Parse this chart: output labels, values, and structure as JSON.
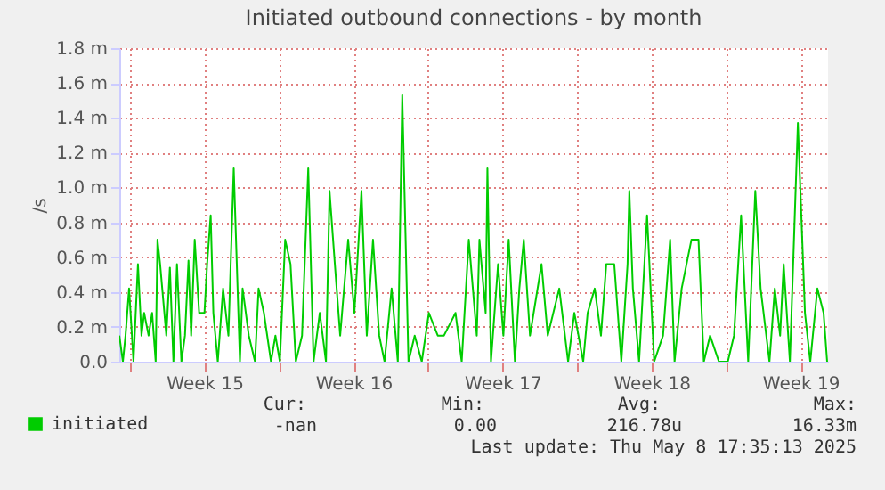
{
  "chart_data": {
    "type": "line",
    "title": "Initiated outbound connections - by month",
    "ylabel": "/s",
    "x": [
      "2025-04-05T12:00",
      "2025-04-05T16:00",
      "2025-04-05T19:00",
      "2025-04-05T23:00",
      "2025-04-06T04:00",
      "2025-04-06T09:00",
      "2025-04-06T13:00",
      "2025-04-06T16:00",
      "2025-04-06T21:00",
      "2025-04-07T01:00",
      "2025-04-07T05:00",
      "2025-04-07T07:00",
      "2025-04-07T10:00",
      "2025-04-07T17:00",
      "2025-04-07T21:00",
      "2025-04-08T01:00",
      "2025-04-08T05:00",
      "2025-04-08T10:00",
      "2025-04-08T14:00",
      "2025-04-08T18:00",
      "2025-04-08T21:00",
      "2025-04-09T01:00",
      "2025-04-09T06:00",
      "2025-04-09T12:00",
      "2025-04-09T15:00",
      "2025-04-09T19:00",
      "2025-04-09T22:00",
      "2025-04-10T03:00",
      "2025-04-10T09:00",
      "2025-04-10T15:00",
      "2025-04-10T21:00",
      "2025-04-11T04:00",
      "2025-04-11T07:00",
      "2025-04-11T14:00",
      "2025-04-11T21:00",
      "2025-04-12T01:00",
      "2025-04-12T07:00",
      "2025-04-12T15:00",
      "2025-04-12T20:00",
      "2025-04-13T01:00",
      "2025-04-13T07:00",
      "2025-04-13T13:00",
      "2025-04-13T19:00",
      "2025-04-14T02:00",
      "2025-04-14T09:00",
      "2025-04-14T15:00",
      "2025-04-14T22:00",
      "2025-04-15T05:00",
      "2025-04-15T09:00",
      "2025-04-15T15:00",
      "2025-04-15T21:00",
      "2025-04-16T06:00",
      "2025-04-16T13:00",
      "2025-04-16T21:00",
      "2025-04-17T03:00",
      "2025-04-17T10:00",
      "2025-04-17T17:00",
      "2025-04-17T23:00",
      "2025-04-18T07:00",
      "2025-04-18T14:00",
      "2025-04-18T19:00",
      "2025-04-19T02:00",
      "2025-04-19T09:00",
      "2025-04-19T17:00",
      "2025-04-20T01:00",
      "2025-04-20T11:00",
      "2025-04-20T18:00",
      "2025-04-21T07:00",
      "2025-04-21T14:00",
      "2025-04-21T22:00",
      "2025-04-22T07:00",
      "2025-04-22T10:00",
      "2025-04-22T17:00",
      "2025-04-22T19:00",
      "2025-04-22T23:00",
      "2025-04-23T07:00",
      "2025-04-23T13:00",
      "2025-04-23T19:00",
      "2025-04-24T02:00",
      "2025-04-24T07:00",
      "2025-04-24T12:00",
      "2025-04-24T19:00",
      "2025-04-25T08:00",
      "2025-04-25T15:00",
      "2025-04-26T04:00",
      "2025-04-26T14:00",
      "2025-04-26T21:00",
      "2025-04-27T07:00",
      "2025-04-27T12:00",
      "2025-04-27T20:00",
      "2025-04-28T03:00",
      "2025-04-28T09:00",
      "2025-04-28T18:00",
      "2025-04-29T02:00",
      "2025-04-29T09:00",
      "2025-04-29T11:00",
      "2025-04-29T15:00",
      "2025-04-29T22:00",
      "2025-04-30T07:00",
      "2025-04-30T15:00",
      "2025-05-01T01:00",
      "2025-05-01T09:00",
      "2025-05-01T14:00",
      "2025-05-01T22:00",
      "2025-05-02T09:00",
      "2025-05-02T17:00",
      "2025-05-02T23:00",
      "2025-05-03T06:00",
      "2025-05-03T16:00",
      "2025-05-04T02:00",
      "2025-05-04T09:00",
      "2025-05-04T17:00",
      "2025-05-05T01:00",
      "2025-05-05T09:00",
      "2025-05-05T15:00",
      "2025-05-06T01:00",
      "2025-05-06T07:00",
      "2025-05-06T13:00",
      "2025-05-06T17:00",
      "2025-05-07T00:00",
      "2025-05-07T09:00",
      "2025-05-07T17:00",
      "2025-05-07T23:00",
      "2025-05-08T07:00",
      "2025-05-08T14:00",
      "2025-05-08T18:00"
    ],
    "series": [
      {
        "name": "initiated",
        "color": "#00cc00",
        "values": [
          0.15,
          0,
          0.15,
          0.42,
          0,
          0.56,
          0.15,
          0.28,
          0.15,
          0.28,
          0,
          0.7,
          0.56,
          0.15,
          0.54,
          0,
          0.56,
          0,
          0.15,
          0.58,
          0.15,
          0.7,
          0.28,
          0.28,
          0.56,
          0.84,
          0.28,
          0,
          0.42,
          0.15,
          1.11,
          0,
          0.42,
          0.15,
          0,
          0.42,
          0.28,
          0,
          0.15,
          0,
          0.7,
          0.56,
          0,
          0.15,
          1.11,
          0,
          0.28,
          0,
          0.98,
          0.56,
          0.15,
          0.7,
          0.28,
          0.98,
          0.15,
          0.7,
          0.15,
          0,
          0.42,
          0,
          1.53,
          0,
          0.15,
          0,
          0.28,
          0.15,
          0.15,
          0.28,
          0,
          0.7,
          0.15,
          0.7,
          0.28,
          1.11,
          0,
          0.56,
          0.15,
          0.7,
          0,
          0.42,
          0.7,
          0.15,
          0.56,
          0.15,
          0.42,
          0,
          0.28,
          0,
          0.28,
          0.42,
          0.15,
          0.56,
          0.56,
          0,
          0.56,
          0.98,
          0.42,
          0,
          0.84,
          0,
          0.15,
          0.7,
          0,
          0.42,
          0.7,
          0.7,
          0,
          0.15,
          0,
          0,
          0.15,
          0.84,
          0,
          0.98,
          0.42,
          0,
          0.42,
          0.15,
          0.56,
          0,
          1.37,
          0.28,
          0,
          0.42,
          0.28,
          0
        ]
      }
    ],
    "xlim": [
      "2025-04-05T12:00",
      "2025-05-08T19:00"
    ],
    "xticks": [
      {
        "value": "2025-04-06T00:00",
        "label": null
      },
      {
        "value": "2025-04-09T12:00",
        "label": "Week 15"
      },
      {
        "value": "2025-04-13T00:00",
        "label": null
      },
      {
        "value": "2025-04-16T12:00",
        "label": "Week 16"
      },
      {
        "value": "2025-04-20T00:00",
        "label": null
      },
      {
        "value": "2025-04-23T12:00",
        "label": "Week 17"
      },
      {
        "value": "2025-04-27T00:00",
        "label": null
      },
      {
        "value": "2025-04-30T12:00",
        "label": "Week 18"
      },
      {
        "value": "2025-05-04T00:00",
        "label": null
      },
      {
        "value": "2025-05-07T12:00",
        "label": "Week 19"
      }
    ],
    "ylim": [
      0,
      1.8
    ],
    "yticks": [
      {
        "value": 0,
        "label": "0.0"
      },
      {
        "value": 0.2,
        "label": "0.2 m"
      },
      {
        "value": 0.4,
        "label": "0.4 m"
      },
      {
        "value": 0.6,
        "label": "0.6 m"
      },
      {
        "value": 0.8,
        "label": "0.8 m"
      },
      {
        "value": 1.0,
        "label": "1.0 m"
      },
      {
        "value": 1.2,
        "label": "1.2 m"
      },
      {
        "value": 1.4,
        "label": "1.4 m"
      },
      {
        "value": 1.6,
        "label": "1.6 m"
      },
      {
        "value": 1.8,
        "label": "1.8 m"
      }
    ],
    "grid": true,
    "legend": "bottom",
    "marker": "none",
    "line_style": "solid",
    "annotations": [
      "Cur:",
      "Min:",
      "Avg:",
      "Max:",
      "-nan",
      "0.00",
      "216.78u",
      "16.33m",
      "Last update: Thu May  8 17:35:13 2025"
    ]
  }
}
